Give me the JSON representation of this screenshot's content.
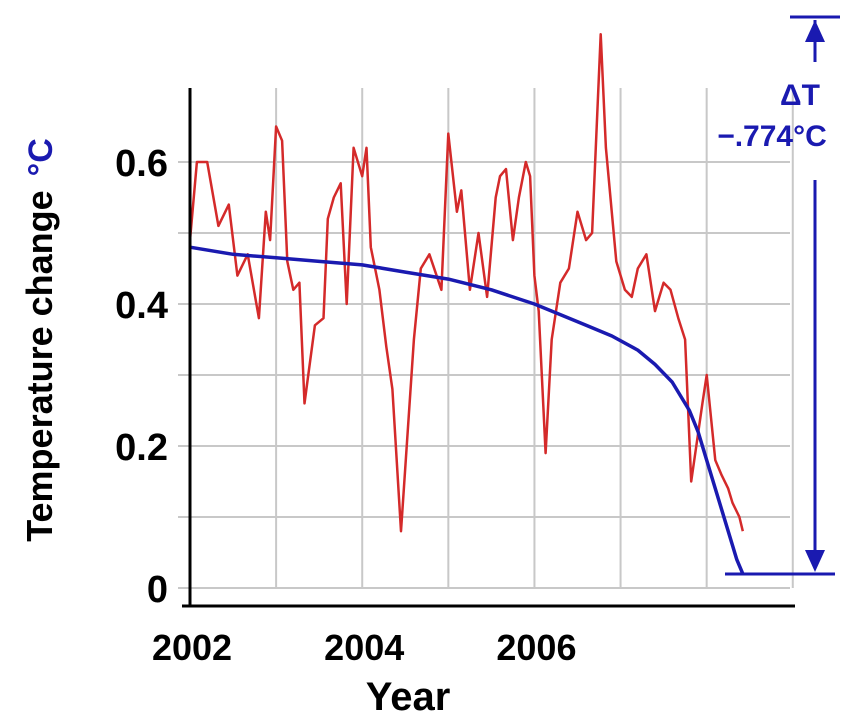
{
  "chart_data": {
    "type": "line",
    "xlabel": "Year",
    "ylabel": "Temperature change",
    "ylabel_unit": "°C",
    "xlim": [
      2002,
      2009.2
    ],
    "ylim": [
      0,
      0.7
    ],
    "x_ticks": [
      "2002",
      "2004",
      "2006"
    ],
    "y_ticks": [
      "0",
      "0.2",
      "0.4",
      "0.6"
    ],
    "grid": true,
    "annotation": {
      "delta_label": "ΔT",
      "delta_value": "−.774°C"
    },
    "series": [
      {
        "color": "#d42a2a",
        "x": [
          2002.0,
          2002.08,
          2002.2,
          2002.33,
          2002.45,
          2002.55,
          2002.67,
          2002.8,
          2002.88,
          2002.93,
          2003.0,
          2003.07,
          2003.13,
          2003.2,
          2003.27,
          2003.33,
          2003.45,
          2003.55,
          2003.6,
          2003.67,
          2003.75,
          2003.82,
          2003.9,
          2004.0,
          2004.05,
          2004.1,
          2004.2,
          2004.28,
          2004.35,
          2004.45,
          2004.6,
          2004.68,
          2004.78,
          2004.92,
          2005.0,
          2005.1,
          2005.15,
          2005.25,
          2005.35,
          2005.45,
          2005.55,
          2005.6,
          2005.67,
          2005.75,
          2005.82,
          2005.9,
          2005.95,
          2006.0,
          2006.05,
          2006.13,
          2006.2,
          2006.3,
          2006.4,
          2006.5,
          2006.6,
          2006.67,
          2006.77,
          2006.83,
          2006.95,
          2007.05,
          2007.13,
          2007.2,
          2007.3,
          2007.4,
          2007.5,
          2007.58,
          2007.67,
          2007.75,
          2007.82,
          2007.88,
          2007.95,
          2008.0,
          2008.1,
          2008.17,
          2008.25,
          2008.3,
          2008.38,
          2008.42
        ],
        "y": [
          0.49,
          0.6,
          0.6,
          0.51,
          0.54,
          0.44,
          0.47,
          0.38,
          0.53,
          0.49,
          0.65,
          0.63,
          0.46,
          0.42,
          0.43,
          0.26,
          0.37,
          0.38,
          0.52,
          0.55,
          0.57,
          0.4,
          0.62,
          0.58,
          0.62,
          0.48,
          0.42,
          0.34,
          0.28,
          0.08,
          0.35,
          0.45,
          0.47,
          0.42,
          0.64,
          0.53,
          0.56,
          0.42,
          0.5,
          0.41,
          0.55,
          0.58,
          0.59,
          0.49,
          0.55,
          0.6,
          0.58,
          0.44,
          0.39,
          0.19,
          0.35,
          0.43,
          0.45,
          0.53,
          0.49,
          0.5,
          0.78,
          0.62,
          0.46,
          0.42,
          0.41,
          0.45,
          0.47,
          0.39,
          0.43,
          0.42,
          0.38,
          0.35,
          0.15,
          0.2,
          0.26,
          0.3,
          0.18,
          0.16,
          0.14,
          0.12,
          0.1,
          0.08
        ]
      },
      {
        "color": "#1a1ab0",
        "x": [
          2002.0,
          2002.5,
          2003.0,
          2003.5,
          2004.0,
          2004.5,
          2005.0,
          2005.5,
          2006.0,
          2006.3,
          2006.6,
          2006.9,
          2007.2,
          2007.4,
          2007.6,
          2007.8,
          2007.9,
          2008.0,
          2008.1,
          2008.2,
          2008.3,
          2008.35,
          2008.42
        ],
        "y": [
          0.48,
          0.47,
          0.465,
          0.46,
          0.455,
          0.445,
          0.435,
          0.42,
          0.4,
          0.385,
          0.37,
          0.355,
          0.335,
          0.315,
          0.29,
          0.25,
          0.22,
          0.18,
          0.14,
          0.1,
          0.06,
          0.04,
          0.02
        ]
      }
    ]
  }
}
